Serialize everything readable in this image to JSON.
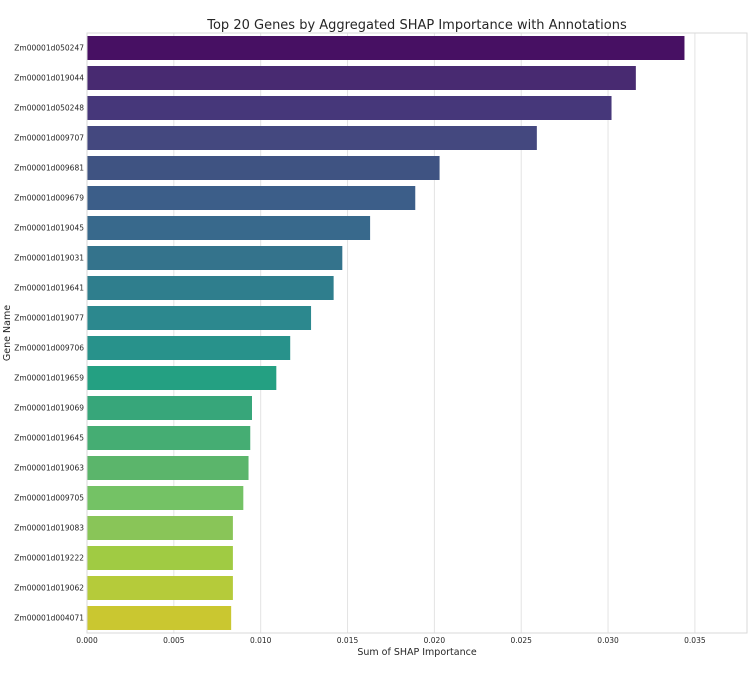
{
  "chart_data": {
    "type": "bar",
    "orientation": "horizontal",
    "title": "Top 20 Genes by Aggregated SHAP Importance with Annotations",
    "xlabel": "Sum of SHAP Importance",
    "ylabel": "Gene Name",
    "xlim": [
      0,
      0.038
    ],
    "xticks": [
      0.0,
      0.005,
      0.01,
      0.015,
      0.02,
      0.025,
      0.03,
      0.035
    ],
    "xtick_labels": [
      "0.000",
      "0.005",
      "0.010",
      "0.015",
      "0.020",
      "0.025",
      "0.030",
      "0.035"
    ],
    "grid": "x",
    "categories": [
      "Zm00001d050247",
      "Zm00001d019044",
      "Zm00001d050248",
      "Zm00001d009707",
      "Zm00001d009681",
      "Zm00001d009679",
      "Zm00001d019045",
      "Zm00001d019031",
      "Zm00001d019641",
      "Zm00001d019077",
      "Zm00001d009706",
      "Zm00001d019659",
      "Zm00001d019069",
      "Zm00001d019645",
      "Zm00001d019063",
      "Zm00001d009705",
      "Zm00001d019083",
      "Zm00001d019222",
      "Zm00001d019062",
      "Zm00001d004071"
    ],
    "values": [
      0.0344,
      0.0316,
      0.0302,
      0.0259,
      0.0203,
      0.0189,
      0.0163,
      0.0147,
      0.0142,
      0.0129,
      0.0117,
      0.0109,
      0.0095,
      0.0094,
      0.0093,
      0.009,
      0.0084,
      0.0084,
      0.0084,
      0.0083
    ],
    "colors": [
      "#471063",
      "#482a71",
      "#46377a",
      "#44487f",
      "#3f5382",
      "#3c5e89",
      "#38698c",
      "#34738c",
      "#2f7e8d",
      "#2c888e",
      "#28928b",
      "#24a082",
      "#37a67a",
      "#45ad73",
      "#5bb56b",
      "#74c265",
      "#89c558",
      "#a0cb43",
      "#b5cb3a",
      "#cac730"
    ]
  }
}
